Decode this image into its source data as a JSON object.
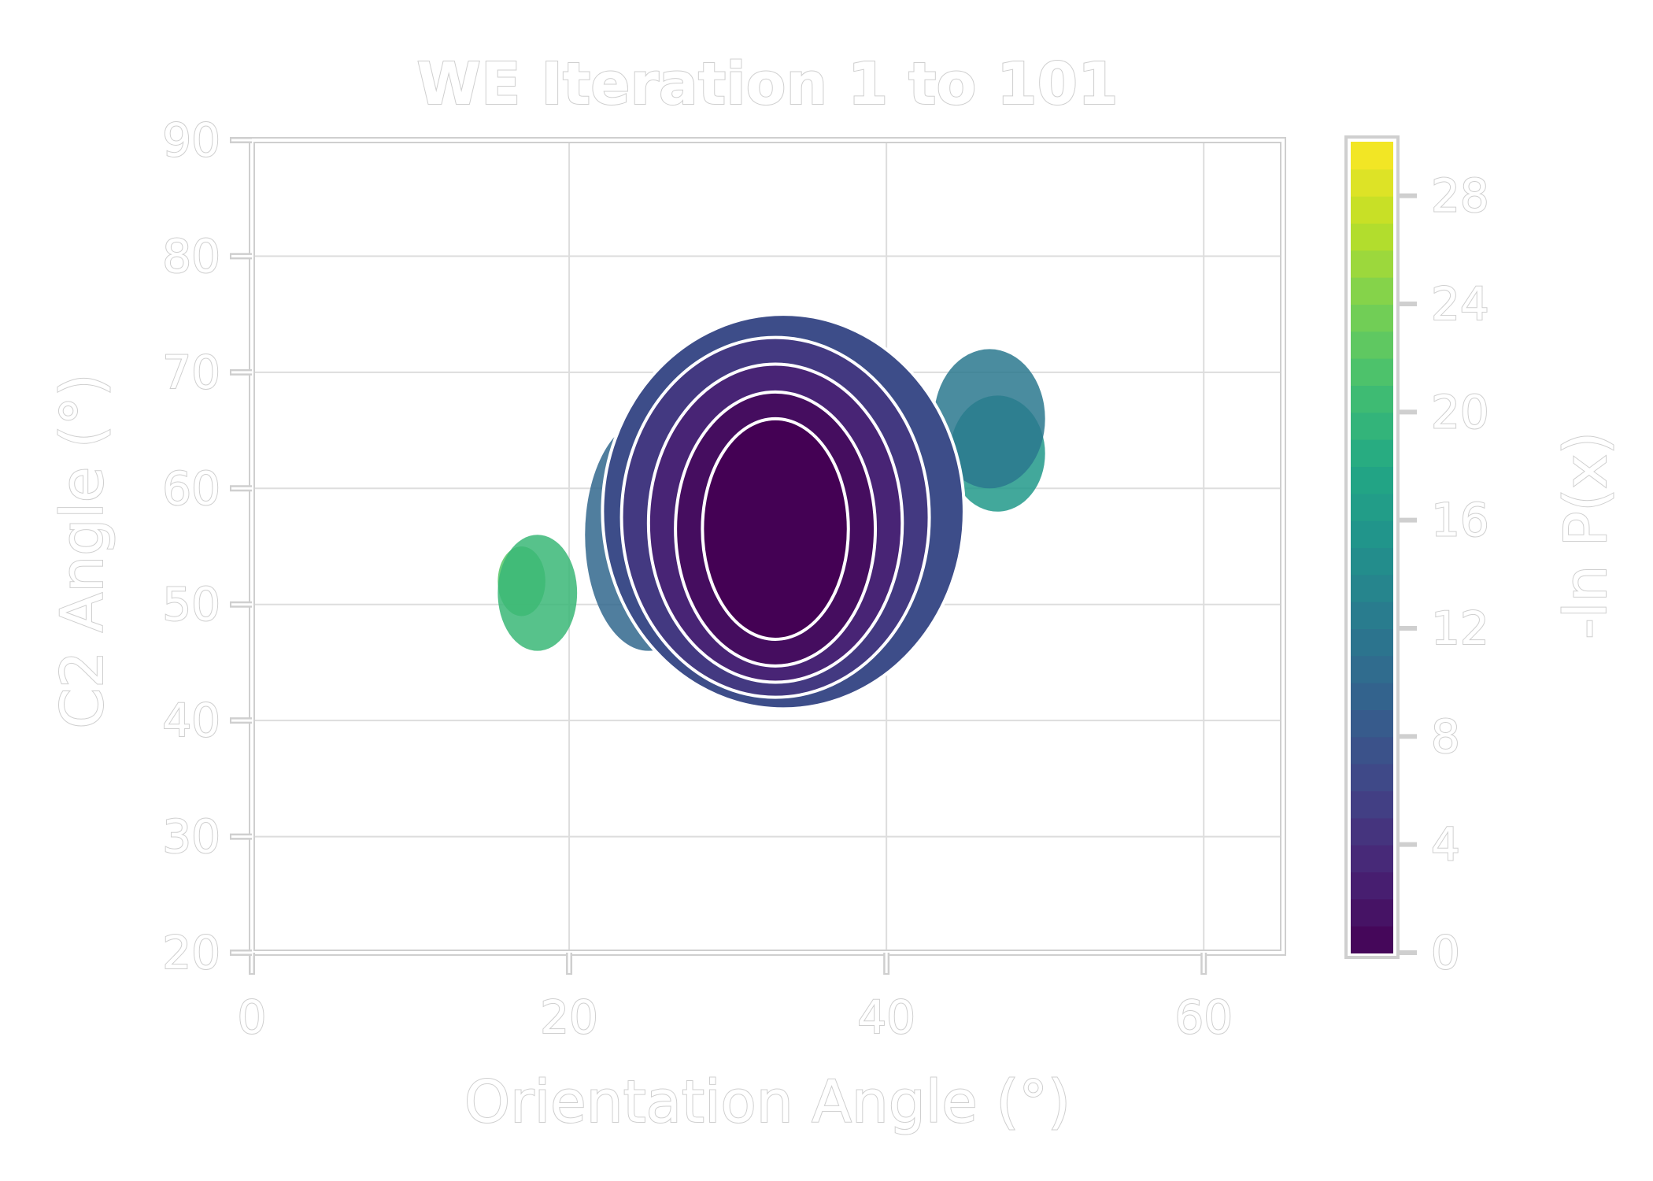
{
  "chart_data": {
    "type": "heatmap",
    "title": "WE Iteration 1 to 101",
    "xlabel": "Orientation Angle (°)",
    "ylabel": "C2 Angle (°)",
    "colorbar_label": "-ln P(x)",
    "xlim": [
      0,
      65
    ],
    "ylim": [
      20,
      90
    ],
    "xticks": [
      0,
      20,
      40,
      60
    ],
    "yticks": [
      20,
      30,
      40,
      50,
      60,
      70,
      80,
      90
    ],
    "colorbar_ticks": [
      0,
      4,
      8,
      12,
      16,
      20,
      24,
      28
    ],
    "colorbar_range": [
      0,
      30
    ],
    "colormap": [
      "#440154",
      "#482475",
      "#414487",
      "#355f8d",
      "#2a788e",
      "#21918c",
      "#22a884",
      "#44bf70",
      "#7ad151",
      "#bddf26",
      "#fde725"
    ],
    "grid": true,
    "contour_lines": [
      {
        "level": 0,
        "center": [
          33,
          56.5
        ],
        "rx": 4.6,
        "ry": 9.5
      },
      {
        "level": 2,
        "center": [
          33,
          56.5
        ],
        "rx": 6.3,
        "ry": 11.8
      },
      {
        "level": 4,
        "center": [
          33,
          57
        ],
        "rx": 8.0,
        "ry": 13.7
      },
      {
        "level": 6,
        "center": [
          33,
          57.5
        ],
        "rx": 9.7,
        "ry": 15.5
      },
      {
        "level": 8,
        "center": [
          33.5,
          58
        ],
        "rx": 11.4,
        "ry": 17.0
      }
    ],
    "regions": [
      {
        "level": 1,
        "center": [
          33,
          56.5
        ],
        "rx": 6.3,
        "ry": 11.8
      },
      {
        "level": 3,
        "center": [
          33,
          57
        ],
        "rx": 8.0,
        "ry": 13.7
      },
      {
        "level": 5,
        "center": [
          33,
          57.5
        ],
        "rx": 9.7,
        "ry": 15.5
      },
      {
        "level": 7,
        "center": [
          33.5,
          58
        ],
        "rx": 11.4,
        "ry": 17.0
      },
      {
        "level": 10,
        "center": [
          25,
          56
        ],
        "rx": 4,
        "ry": 10
      },
      {
        "level": 12,
        "center": [
          46.5,
          66
        ],
        "rx": 3.5,
        "ry": 6
      },
      {
        "level": 16,
        "center": [
          47,
          63
        ],
        "rx": 3,
        "ry": 5
      },
      {
        "level": 20,
        "center": [
          18,
          51
        ],
        "rx": 2.5,
        "ry": 5
      },
      {
        "level": 22,
        "center": [
          17,
          52
        ],
        "rx": 1.5,
        "ry": 3
      }
    ]
  }
}
